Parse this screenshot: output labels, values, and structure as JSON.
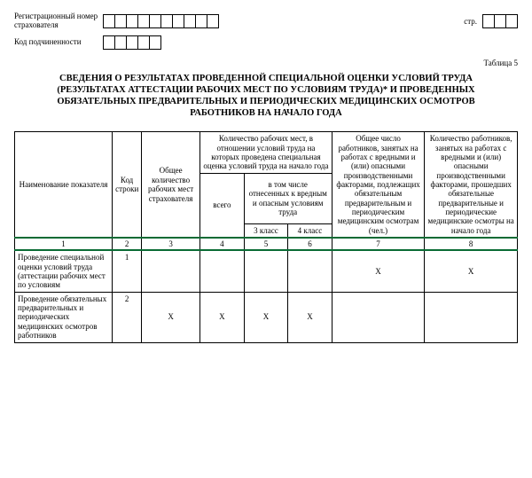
{
  "header": {
    "reg_label": "Регистрационный номер страхователя",
    "sub_label": "Код подчиненности",
    "str_label": "стр.",
    "reg_boxes": 10,
    "sub_boxes": 5,
    "str_boxes": 3
  },
  "table_label": "Таблица 5",
  "title_lines": [
    "СВЕДЕНИЯ О РЕЗУЛЬТАТАХ ПРОВЕДЕННОЙ СПЕЦИАЛЬНОЙ ОЦЕНКИ УСЛОВИЙ ТРУДА",
    "(РЕЗУЛЬТАТАХ АТТЕСТАЦИИ РАБОЧИХ МЕСТ ПО УСЛОВИЯМ ТРУДА)* И ПРОВЕДЕННЫХ",
    "ОБЯЗАТЕЛЬНЫХ ПРЕДВАРИТЕЛЬНЫХ И ПЕРИОДИЧЕСКИХ МЕДИЦИНСКИХ ОСМОТРОВ",
    "РАБОТНИКОВ НА НАЧАЛО ГОДА"
  ],
  "columns": {
    "c1": "Наименование показателя",
    "c2": "Код строки",
    "c3": "Общее количество рабочих мест страхователя",
    "c4_group": "Количество рабочих мест, в отношении условий труда на которых проведена специальная оценка условий труда на начало года",
    "c4": "всего",
    "c56_group": "в том числе отнесенных к вредным и опасным условиям труда",
    "c5": "3 класс",
    "c6": "4 класс",
    "c7": "Общее число работников, занятых на работах с вредными и (или) опасными производственными факторами, подлежащих обязательным предварительным и периодическим медицинским осмотрам (чел.)",
    "c8": "Количество работников, занятых на работах с вредными и (или) опасными производственными факторами, прошедших обязательные предварительные и периодические медицинские осмотры на начало года"
  },
  "numrow": [
    "1",
    "2",
    "3",
    "4",
    "5",
    "6",
    "7",
    "8"
  ],
  "rows": [
    {
      "name": "Проведение специальной оценки условий труда (аттестации рабочих мест по условиям",
      "code": "1",
      "c3": "",
      "c4": "",
      "c5": "",
      "c6": "",
      "c7": "X",
      "c8": "X"
    },
    {
      "name": "Проведение обязательных предварительных и периодических медицинских осмотров работников",
      "code": "2",
      "c3": "X",
      "c4": "X",
      "c5": "X",
      "c6": "X",
      "c7": "",
      "c8": ""
    }
  ]
}
